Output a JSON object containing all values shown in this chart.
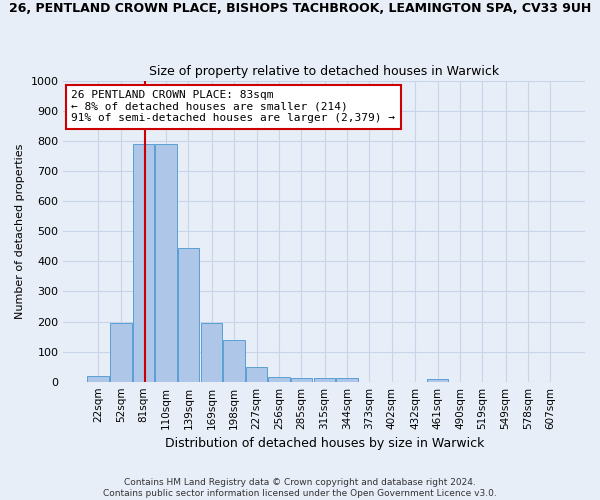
{
  "title_line1": "26, PENTLAND CROWN PLACE, BISHOPS TACHBROOK, LEAMINGTON SPA, CV33 9UH",
  "title_line2": "Size of property relative to detached houses in Warwick",
  "xlabel": "Distribution of detached houses by size in Warwick",
  "ylabel": "Number of detached properties",
  "footer_line1": "Contains HM Land Registry data © Crown copyright and database right 2024.",
  "footer_line2": "Contains public sector information licensed under the Open Government Licence v3.0.",
  "bar_labels": [
    "22sqm",
    "52sqm",
    "81sqm",
    "110sqm",
    "139sqm",
    "169sqm",
    "198sqm",
    "227sqm",
    "256sqm",
    "285sqm",
    "315sqm",
    "344sqm",
    "373sqm",
    "402sqm",
    "432sqm",
    "461sqm",
    "490sqm",
    "519sqm",
    "549sqm",
    "578sqm",
    "607sqm"
  ],
  "bar_values": [
    20,
    195,
    790,
    790,
    445,
    195,
    140,
    50,
    15,
    12,
    12,
    12,
    0,
    0,
    0,
    10,
    0,
    0,
    0,
    0,
    0
  ],
  "bar_color": "#aec6e8",
  "bar_edge_color": "#5a9fd4",
  "ylim": [
    0,
    1000
  ],
  "yticks": [
    0,
    100,
    200,
    300,
    400,
    500,
    600,
    700,
    800,
    900,
    1000
  ],
  "property_line_x": 83,
  "annotation_line1": "26 PENTLAND CROWN PLACE: 83sqm",
  "annotation_line2": "← 8% of detached houses are smaller (214)",
  "annotation_line3": "91% of semi-detached houses are larger (2,379) →",
  "annotation_box_facecolor": "#ffffff",
  "annotation_box_edgecolor": "#cc0000",
  "vline_color": "#cc0000",
  "grid_color": "#c8d4e8",
  "background_color": "#e8eef8",
  "title1_fontsize": 9,
  "title2_fontsize": 9,
  "ylabel_fontsize": 8,
  "xlabel_fontsize": 9,
  "tick_fontsize": 7.5,
  "footer_fontsize": 6.5,
  "bin_width": 29
}
